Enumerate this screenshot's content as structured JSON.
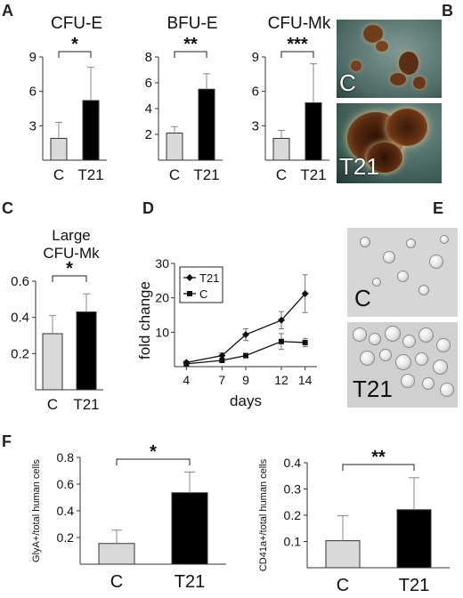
{
  "panel_letters": {
    "a": "A",
    "b": "B",
    "c": "C",
    "d": "D",
    "e": "E",
    "f": "F"
  },
  "colors": {
    "control": "#d9d9d9",
    "t21": "#000000",
    "axis": "#333333",
    "text": "#111111"
  },
  "photos": {
    "b_top_label": "C",
    "b_bottom_label": "T21",
    "e_top_label": "C",
    "e_bottom_label": "T21"
  },
  "chart_data": [
    {
      "id": "A1",
      "type": "bar",
      "title": "CFU-E",
      "categories": [
        "C",
        "T21"
      ],
      "values": [
        1.9,
        5.2
      ],
      "errors": [
        1.4,
        2.9
      ],
      "ylim": [
        0,
        9
      ],
      "yticks": [
        3,
        6,
        9
      ],
      "significance": "*"
    },
    {
      "id": "A2",
      "type": "bar",
      "title": "BFU-E",
      "categories": [
        "C",
        "T21"
      ],
      "values": [
        2.1,
        5.5
      ],
      "errors": [
        0.5,
        1.2
      ],
      "ylim": [
        0,
        8
      ],
      "yticks": [
        2,
        4,
        6,
        8
      ],
      "significance": "**"
    },
    {
      "id": "A3",
      "type": "bar",
      "title": "CFU-Mk",
      "categories": [
        "C",
        "T21"
      ],
      "values": [
        1.9,
        5.0
      ],
      "errors": [
        0.7,
        3.4
      ],
      "ylim": [
        0,
        9
      ],
      "yticks": [
        3,
        6,
        9
      ],
      "significance": "***"
    },
    {
      "id": "C",
      "type": "bar",
      "title": "Large CFU-Mk",
      "title_lines": [
        "Large",
        "CFU-Mk"
      ],
      "categories": [
        "C",
        "T21"
      ],
      "values": [
        0.31,
        0.43
      ],
      "errors": [
        0.1,
        0.1
      ],
      "ylim": [
        0,
        0.6
      ],
      "yticks": [
        "0.2",
        "0.4",
        "0.6"
      ],
      "significance": "*"
    },
    {
      "id": "D",
      "type": "line",
      "xlabel": "days",
      "ylabel": "fold change",
      "x": [
        4,
        7,
        9,
        12,
        14
      ],
      "ylim": [
        0,
        30
      ],
      "yticks": [
        10,
        20,
        30
      ],
      "series": [
        {
          "name": "T21",
          "marker": "diamond",
          "values": [
            1.2,
            3.2,
            9.3,
            13.5,
            21.2
          ],
          "errors": [
            0.5,
            0.8,
            1.7,
            2.5,
            5.5
          ]
        },
        {
          "name": "C",
          "marker": "square",
          "values": [
            0.8,
            1.8,
            3.2,
            7.3,
            7.0
          ],
          "errors": [
            0.3,
            0.4,
            0.6,
            2.3,
            1.2
          ]
        }
      ],
      "legend": "top-left"
    },
    {
      "id": "F1",
      "type": "bar",
      "ylabel": "GlyA+/total human cells",
      "categories": [
        "C",
        "T21"
      ],
      "values": [
        0.155,
        0.535
      ],
      "errors": [
        0.1,
        0.155
      ],
      "ylim": [
        0,
        0.8
      ],
      "yticks": [
        "0.2",
        "0.4",
        "0.6",
        "0.8"
      ],
      "significance": "*"
    },
    {
      "id": "F2",
      "type": "bar",
      "ylabel": "CD41a+/total human cells",
      "categories": [
        "C",
        "T21"
      ],
      "values": [
        0.103,
        0.221
      ],
      "errors": [
        0.095,
        0.122
      ],
      "ylim": [
        0,
        0.4
      ],
      "yticks": [
        "0.1",
        "0.2",
        "0.3",
        "0.4"
      ],
      "significance": "**"
    }
  ]
}
